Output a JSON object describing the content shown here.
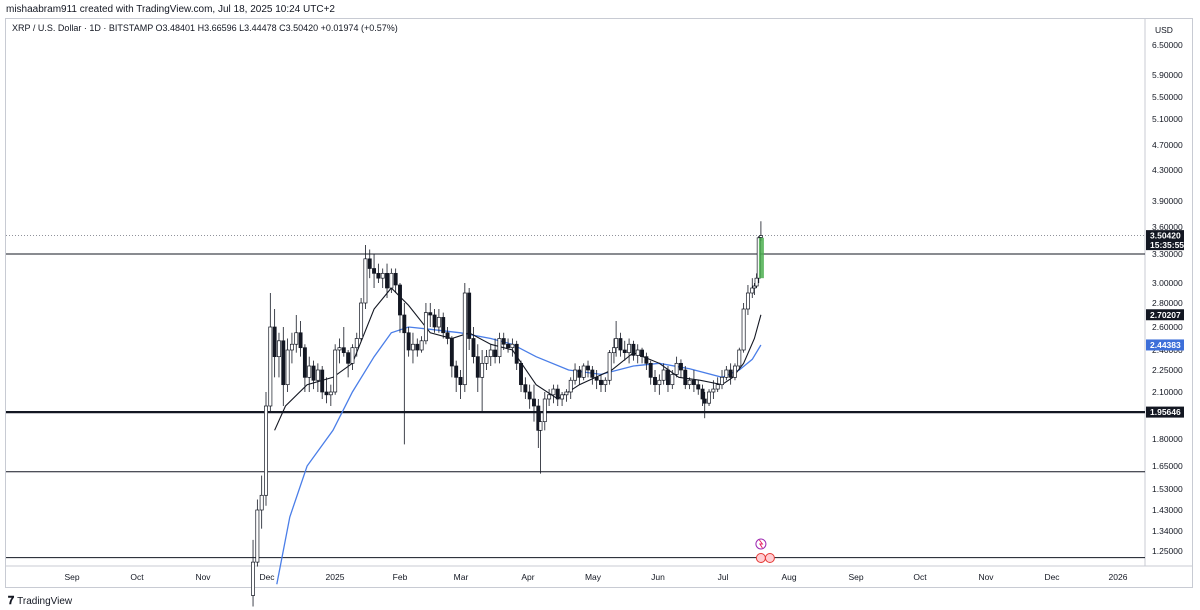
{
  "header": {
    "credit": "mishaabram911 created with TradingView.com, Jul 18, 2025 10:24 UTC+2",
    "symbol_line": "XRP / U.S. Dollar · 1D · BITSTAMP  O3.48401 H3.66596 L3.44478 C3.50420 +0.01974 (+0.57%)"
  },
  "footer": {
    "brand": "TradingView",
    "logo": "TV-logo-icon"
  },
  "chart_data": {
    "type": "candlestick",
    "currency_label": "USD",
    "y_ticks": [
      "6.50000",
      "5.90000",
      "5.50000",
      "5.10000",
      "4.70000",
      "4.30000",
      "3.90000",
      "3.60000",
      "3.30000",
      "3.00000",
      "2.80000",
      "2.60000",
      "2.40000",
      "2.25000",
      "2.10000",
      "1.95000",
      "1.80000",
      "1.65000",
      "1.53000",
      "1.43000",
      "1.34000",
      "1.25000"
    ],
    "x_ticks": [
      "Sep",
      "Oct",
      "Nov",
      "Dec",
      "2025",
      "Feb",
      "Mar",
      "Apr",
      "May",
      "Jun",
      "Jul",
      "Aug",
      "Sep",
      "Oct",
      "Nov",
      "Dec",
      "2026"
    ],
    "price_tags": [
      {
        "label": "3.50420",
        "sub": "15:35:55",
        "kind": "last"
      },
      {
        "label": "2.70207",
        "kind": "ma_fast"
      },
      {
        "label": "2.44383",
        "kind": "ma_slow"
      },
      {
        "label": "1.95646",
        "kind": "level"
      }
    ],
    "horizontal_levels": [
      3.3,
      1.95646,
      1.62,
      1.22
    ],
    "last_price": 3.5042,
    "colors": {
      "up": "#26a69a",
      "down": "#131722",
      "ma_fast": "#131722",
      "ma_slow": "#4a7ee8",
      "last_tag": "#131722",
      "ma_slow_tag": "#3d6fd9",
      "highlight": "#4caf50"
    },
    "series": [
      {
        "date": "2024-11-25",
        "o": 1.05,
        "h": 1.3,
        "l": 1.0,
        "c": 1.2
      },
      {
        "date": "2024-11-27",
        "o": 1.2,
        "h": 1.48,
        "l": 1.18,
        "c": 1.43
      },
      {
        "date": "2024-11-29",
        "o": 1.43,
        "h": 1.6,
        "l": 1.35,
        "c": 1.5
      },
      {
        "date": "2024-12-01",
        "o": 1.5,
        "h": 2.1,
        "l": 1.45,
        "c": 2.0
      },
      {
        "date": "2024-12-03",
        "o": 2.0,
        "h": 2.9,
        "l": 1.95,
        "c": 2.6
      },
      {
        "date": "2024-12-05",
        "o": 2.6,
        "h": 2.75,
        "l": 2.2,
        "c": 2.35
      },
      {
        "date": "2024-12-07",
        "o": 2.35,
        "h": 2.55,
        "l": 2.2,
        "c": 2.48
      },
      {
        "date": "2024-12-09",
        "o": 2.48,
        "h": 2.6,
        "l": 2.0,
        "c": 2.15
      },
      {
        "date": "2024-12-11",
        "o": 2.15,
        "h": 2.5,
        "l": 2.1,
        "c": 2.4
      },
      {
        "date": "2024-12-13",
        "o": 2.4,
        "h": 2.55,
        "l": 2.3,
        "c": 2.45
      },
      {
        "date": "2024-12-15",
        "o": 2.45,
        "h": 2.7,
        "l": 2.38,
        "c": 2.55
      },
      {
        "date": "2024-12-17",
        "o": 2.55,
        "h": 2.65,
        "l": 2.35,
        "c": 2.42
      },
      {
        "date": "2024-12-19",
        "o": 2.42,
        "h": 2.45,
        "l": 2.1,
        "c": 2.2
      },
      {
        "date": "2024-12-21",
        "o": 2.2,
        "h": 2.35,
        "l": 2.1,
        "c": 2.28
      },
      {
        "date": "2024-12-23",
        "o": 2.28,
        "h": 2.32,
        "l": 2.12,
        "c": 2.18
      },
      {
        "date": "2024-12-25",
        "o": 2.18,
        "h": 2.3,
        "l": 2.1,
        "c": 2.25
      },
      {
        "date": "2024-12-27",
        "o": 2.25,
        "h": 2.28,
        "l": 2.05,
        "c": 2.1
      },
      {
        "date": "2024-12-29",
        "o": 2.1,
        "h": 2.2,
        "l": 2.02,
        "c": 2.08
      },
      {
        "date": "2024-12-31",
        "o": 2.08,
        "h": 2.15,
        "l": 2.0,
        "c": 2.1
      },
      {
        "date": "2025-01-02",
        "o": 2.1,
        "h": 2.45,
        "l": 2.08,
        "c": 2.4
      },
      {
        "date": "2025-01-04",
        "o": 2.4,
        "h": 2.5,
        "l": 2.3,
        "c": 2.42
      },
      {
        "date": "2025-01-06",
        "o": 2.42,
        "h": 2.6,
        "l": 2.35,
        "c": 2.38
      },
      {
        "date": "2025-01-08",
        "o": 2.38,
        "h": 2.4,
        "l": 2.2,
        "c": 2.3
      },
      {
        "date": "2025-01-10",
        "o": 2.3,
        "h": 2.45,
        "l": 2.25,
        "c": 2.42
      },
      {
        "date": "2025-01-12",
        "o": 2.42,
        "h": 2.55,
        "l": 2.35,
        "c": 2.5
      },
      {
        "date": "2025-01-14",
        "o": 2.5,
        "h": 2.85,
        "l": 2.48,
        "c": 2.8
      },
      {
        "date": "2025-01-16",
        "o": 2.8,
        "h": 3.4,
        "l": 2.75,
        "c": 3.25
      },
      {
        "date": "2025-01-18",
        "o": 3.25,
        "h": 3.35,
        "l": 3.05,
        "c": 3.15
      },
      {
        "date": "2025-01-20",
        "o": 3.15,
        "h": 3.3,
        "l": 2.95,
        "c": 3.1
      },
      {
        "date": "2025-01-22",
        "o": 3.1,
        "h": 3.2,
        "l": 3.0,
        "c": 3.05
      },
      {
        "date": "2025-01-24",
        "o": 3.05,
        "h": 3.15,
        "l": 2.95,
        "c": 3.1
      },
      {
        "date": "2025-01-26",
        "o": 3.1,
        "h": 3.2,
        "l": 2.85,
        "c": 2.95
      },
      {
        "date": "2025-01-28",
        "o": 2.95,
        "h": 3.15,
        "l": 2.9,
        "c": 3.1
      },
      {
        "date": "2025-01-30",
        "o": 3.1,
        "h": 3.15,
        "l": 2.9,
        "c": 2.98
      },
      {
        "date": "2025-02-01",
        "o": 2.98,
        "h": 3.0,
        "l": 2.55,
        "c": 2.7
      },
      {
        "date": "2025-02-03",
        "o": 2.7,
        "h": 2.8,
        "l": 1.77,
        "c": 2.55
      },
      {
        "date": "2025-02-05",
        "o": 2.55,
        "h": 2.6,
        "l": 2.35,
        "c": 2.4
      },
      {
        "date": "2025-02-07",
        "o": 2.4,
        "h": 2.55,
        "l": 2.3,
        "c": 2.45
      },
      {
        "date": "2025-02-09",
        "o": 2.45,
        "h": 2.5,
        "l": 2.35,
        "c": 2.4
      },
      {
        "date": "2025-02-11",
        "o": 2.4,
        "h": 2.52,
        "l": 2.38,
        "c": 2.48
      },
      {
        "date": "2025-02-13",
        "o": 2.48,
        "h": 2.8,
        "l": 2.45,
        "c": 2.72
      },
      {
        "date": "2025-02-15",
        "o": 2.72,
        "h": 2.8,
        "l": 2.6,
        "c": 2.7
      },
      {
        "date": "2025-02-17",
        "o": 2.7,
        "h": 2.75,
        "l": 2.55,
        "c": 2.6
      },
      {
        "date": "2025-02-19",
        "o": 2.6,
        "h": 2.75,
        "l": 2.55,
        "c": 2.68
      },
      {
        "date": "2025-02-21",
        "o": 2.68,
        "h": 2.72,
        "l": 2.5,
        "c": 2.55
      },
      {
        "date": "2025-02-23",
        "o": 2.55,
        "h": 2.6,
        "l": 2.45,
        "c": 2.5
      },
      {
        "date": "2025-02-25",
        "o": 2.5,
        "h": 2.52,
        "l": 2.2,
        "c": 2.28
      },
      {
        "date": "2025-02-27",
        "o": 2.28,
        "h": 2.32,
        "l": 2.1,
        "c": 2.2
      },
      {
        "date": "2025-03-01",
        "o": 2.2,
        "h": 2.25,
        "l": 2.05,
        "c": 2.15
      },
      {
        "date": "2025-03-03",
        "o": 2.15,
        "h": 3.0,
        "l": 2.1,
        "c": 2.9
      },
      {
        "date": "2025-03-05",
        "o": 2.9,
        "h": 2.95,
        "l": 2.4,
        "c": 2.5
      },
      {
        "date": "2025-03-07",
        "o": 2.5,
        "h": 2.6,
        "l": 2.3,
        "c": 2.35
      },
      {
        "date": "2025-03-09",
        "o": 2.35,
        "h": 2.45,
        "l": 2.1,
        "c": 2.2
      },
      {
        "date": "2025-03-11",
        "o": 2.2,
        "h": 2.4,
        "l": 1.95,
        "c": 2.3
      },
      {
        "date": "2025-03-13",
        "o": 2.3,
        "h": 2.4,
        "l": 2.25,
        "c": 2.35
      },
      {
        "date": "2025-03-15",
        "o": 2.35,
        "h": 2.45,
        "l": 2.28,
        "c": 2.4
      },
      {
        "date": "2025-03-17",
        "o": 2.4,
        "h": 2.5,
        "l": 2.3,
        "c": 2.35
      },
      {
        "date": "2025-03-19",
        "o": 2.35,
        "h": 2.55,
        "l": 2.3,
        "c": 2.5
      },
      {
        "date": "2025-03-21",
        "o": 2.5,
        "h": 2.55,
        "l": 2.4,
        "c": 2.45
      },
      {
        "date": "2025-03-23",
        "o": 2.45,
        "h": 2.5,
        "l": 2.38,
        "c": 2.42
      },
      {
        "date": "2025-03-25",
        "o": 2.42,
        "h": 2.5,
        "l": 2.35,
        "c": 2.45
      },
      {
        "date": "2025-03-27",
        "o": 2.45,
        "h": 2.48,
        "l": 2.25,
        "c": 2.3
      },
      {
        "date": "2025-03-29",
        "o": 2.3,
        "h": 2.32,
        "l": 2.1,
        "c": 2.15
      },
      {
        "date": "2025-03-31",
        "o": 2.15,
        "h": 2.2,
        "l": 2.05,
        "c": 2.1
      },
      {
        "date": "2025-04-02",
        "o": 2.1,
        "h": 2.15,
        "l": 1.98,
        "c": 2.05
      },
      {
        "date": "2025-04-04",
        "o": 2.05,
        "h": 2.15,
        "l": 1.9,
        "c": 2.0
      },
      {
        "date": "2025-04-06",
        "o": 2.0,
        "h": 2.05,
        "l": 1.75,
        "c": 1.85
      },
      {
        "date": "2025-04-07",
        "o": 1.85,
        "h": 1.95,
        "l": 1.61,
        "c": 1.9
      },
      {
        "date": "2025-04-09",
        "o": 1.9,
        "h": 2.1,
        "l": 1.85,
        "c": 2.05
      },
      {
        "date": "2025-04-11",
        "o": 2.05,
        "h": 2.12,
        "l": 2.0,
        "c": 2.08
      },
      {
        "date": "2025-04-13",
        "o": 2.08,
        "h": 2.15,
        "l": 2.02,
        "c": 2.12
      },
      {
        "date": "2025-04-15",
        "o": 2.12,
        "h": 2.15,
        "l": 2.0,
        "c": 2.05
      },
      {
        "date": "2025-04-17",
        "o": 2.05,
        "h": 2.1,
        "l": 2.0,
        "c": 2.08
      },
      {
        "date": "2025-04-19",
        "o": 2.08,
        "h": 2.12,
        "l": 2.03,
        "c": 2.1
      },
      {
        "date": "2025-04-21",
        "o": 2.1,
        "h": 2.2,
        "l": 2.05,
        "c": 2.18
      },
      {
        "date": "2025-04-23",
        "o": 2.18,
        "h": 2.3,
        "l": 2.15,
        "c": 2.25
      },
      {
        "date": "2025-04-25",
        "o": 2.25,
        "h": 2.28,
        "l": 2.15,
        "c": 2.2
      },
      {
        "date": "2025-04-27",
        "o": 2.2,
        "h": 2.3,
        "l": 2.18,
        "c": 2.28
      },
      {
        "date": "2025-04-29",
        "o": 2.28,
        "h": 2.32,
        "l": 2.2,
        "c": 2.25
      },
      {
        "date": "2025-05-01",
        "o": 2.25,
        "h": 2.28,
        "l": 2.15,
        "c": 2.2
      },
      {
        "date": "2025-05-03",
        "o": 2.2,
        "h": 2.25,
        "l": 2.12,
        "c": 2.18
      },
      {
        "date": "2025-05-05",
        "o": 2.18,
        "h": 2.22,
        "l": 2.1,
        "c": 2.15
      },
      {
        "date": "2025-05-07",
        "o": 2.15,
        "h": 2.2,
        "l": 2.1,
        "c": 2.18
      },
      {
        "date": "2025-05-09",
        "o": 2.18,
        "h": 2.4,
        "l": 2.15,
        "c": 2.38
      },
      {
        "date": "2025-05-11",
        "o": 2.38,
        "h": 2.5,
        "l": 2.3,
        "c": 2.42
      },
      {
        "date": "2025-05-12",
        "o": 2.42,
        "h": 2.65,
        "l": 2.35,
        "c": 2.5
      },
      {
        "date": "2025-05-14",
        "o": 2.5,
        "h": 2.55,
        "l": 2.35,
        "c": 2.4
      },
      {
        "date": "2025-05-16",
        "o": 2.4,
        "h": 2.48,
        "l": 2.32,
        "c": 2.38
      },
      {
        "date": "2025-05-18",
        "o": 2.38,
        "h": 2.5,
        "l": 2.3,
        "c": 2.45
      },
      {
        "date": "2025-05-20",
        "o": 2.45,
        "h": 2.48,
        "l": 2.32,
        "c": 2.36
      },
      {
        "date": "2025-05-22",
        "o": 2.36,
        "h": 2.45,
        "l": 2.3,
        "c": 2.4
      },
      {
        "date": "2025-05-24",
        "o": 2.4,
        "h": 2.42,
        "l": 2.3,
        "c": 2.35
      },
      {
        "date": "2025-05-26",
        "o": 2.35,
        "h": 2.38,
        "l": 2.25,
        "c": 2.3
      },
      {
        "date": "2025-05-28",
        "o": 2.3,
        "h": 2.32,
        "l": 2.15,
        "c": 2.2
      },
      {
        "date": "2025-05-30",
        "o": 2.2,
        "h": 2.25,
        "l": 2.1,
        "c": 2.15
      },
      {
        "date": "2025-06-01",
        "o": 2.15,
        "h": 2.22,
        "l": 2.08,
        "c": 2.18
      },
      {
        "date": "2025-06-03",
        "o": 2.18,
        "h": 2.3,
        "l": 2.15,
        "c": 2.25
      },
      {
        "date": "2025-06-05",
        "o": 2.25,
        "h": 2.28,
        "l": 2.1,
        "c": 2.15
      },
      {
        "date": "2025-06-07",
        "o": 2.15,
        "h": 2.25,
        "l": 2.12,
        "c": 2.22
      },
      {
        "date": "2025-06-09",
        "o": 2.22,
        "h": 2.35,
        "l": 2.2,
        "c": 2.3
      },
      {
        "date": "2025-06-11",
        "o": 2.3,
        "h": 2.33,
        "l": 2.2,
        "c": 2.25
      },
      {
        "date": "2025-06-13",
        "o": 2.25,
        "h": 2.28,
        "l": 2.12,
        "c": 2.15
      },
      {
        "date": "2025-06-15",
        "o": 2.15,
        "h": 2.2,
        "l": 2.12,
        "c": 2.18
      },
      {
        "date": "2025-06-17",
        "o": 2.18,
        "h": 2.25,
        "l": 2.1,
        "c": 2.15
      },
      {
        "date": "2025-06-19",
        "o": 2.15,
        "h": 2.18,
        "l": 2.08,
        "c": 2.12
      },
      {
        "date": "2025-06-21",
        "o": 2.12,
        "h": 2.15,
        "l": 2.0,
        "c": 2.05
      },
      {
        "date": "2025-06-22",
        "o": 2.05,
        "h": 2.1,
        "l": 1.92,
        "c": 2.02
      },
      {
        "date": "2025-06-24",
        "o": 2.02,
        "h": 2.12,
        "l": 2.0,
        "c": 2.1
      },
      {
        "date": "2025-06-26",
        "o": 2.1,
        "h": 2.18,
        "l": 2.05,
        "c": 2.12
      },
      {
        "date": "2025-06-28",
        "o": 2.12,
        "h": 2.2,
        "l": 2.1,
        "c": 2.15
      },
      {
        "date": "2025-06-30",
        "o": 2.15,
        "h": 2.25,
        "l": 2.12,
        "c": 2.2
      },
      {
        "date": "2025-07-02",
        "o": 2.2,
        "h": 2.28,
        "l": 2.18,
        "c": 2.25
      },
      {
        "date": "2025-07-04",
        "o": 2.25,
        "h": 2.3,
        "l": 2.15,
        "c": 2.2
      },
      {
        "date": "2025-07-06",
        "o": 2.2,
        "h": 2.3,
        "l": 2.18,
        "c": 2.28
      },
      {
        "date": "2025-07-08",
        "o": 2.28,
        "h": 2.42,
        "l": 2.25,
        "c": 2.4
      },
      {
        "date": "2025-07-10",
        "o": 2.4,
        "h": 2.8,
        "l": 2.38,
        "c": 2.75
      },
      {
        "date": "2025-07-12",
        "o": 2.75,
        "h": 2.98,
        "l": 2.7,
        "c": 2.9
      },
      {
        "date": "2025-07-14",
        "o": 2.9,
        "h": 3.05,
        "l": 2.85,
        "c": 2.95
      },
      {
        "date": "2025-07-15",
        "o": 2.95,
        "h": 3.0,
        "l": 2.88,
        "c": 2.97
      },
      {
        "date": "2025-07-16",
        "o": 2.97,
        "h": 3.1,
        "l": 2.95,
        "c": 3.05
      },
      {
        "date": "2025-07-17",
        "o": 3.05,
        "h": 3.5,
        "l": 3.0,
        "c": 3.48
      },
      {
        "date": "2025-07-18",
        "o": 3.48401,
        "h": 3.66596,
        "l": 3.44478,
        "c": 3.5042
      }
    ],
    "ma_fast": [
      [
        "2024-12-05",
        1.85
      ],
      [
        "2024-12-10",
        2.0
      ],
      [
        "2024-12-20",
        2.15
      ],
      [
        "2025-01-01",
        2.2
      ],
      [
        "2025-01-10",
        2.3
      ],
      [
        "2025-01-20",
        2.75
      ],
      [
        "2025-01-28",
        2.95
      ],
      [
        "2025-02-05",
        2.78
      ],
      [
        "2025-02-15",
        2.55
      ],
      [
        "2025-02-25",
        2.5
      ],
      [
        "2025-03-05",
        2.55
      ],
      [
        "2025-03-15",
        2.45
      ],
      [
        "2025-03-25",
        2.4
      ],
      [
        "2025-04-05",
        2.15
      ],
      [
        "2025-04-15",
        2.05
      ],
      [
        "2025-04-25",
        2.15
      ],
      [
        "2025-05-10",
        2.25
      ],
      [
        "2025-05-20",
        2.38
      ],
      [
        "2025-06-01",
        2.3
      ],
      [
        "2025-06-10",
        2.2
      ],
      [
        "2025-06-20",
        2.18
      ],
      [
        "2025-06-30",
        2.15
      ],
      [
        "2025-07-05",
        2.2
      ],
      [
        "2025-07-10",
        2.3
      ],
      [
        "2025-07-15",
        2.5
      ],
      [
        "2025-07-18",
        2.70207
      ]
    ],
    "ma_slow": [
      [
        "2024-12-06",
        1.1
      ],
      [
        "2024-12-12",
        1.4
      ],
      [
        "2024-12-20",
        1.65
      ],
      [
        "2025-01-01",
        1.85
      ],
      [
        "2025-01-10",
        2.1
      ],
      [
        "2025-01-20",
        2.35
      ],
      [
        "2025-01-28",
        2.55
      ],
      [
        "2025-02-05",
        2.6
      ],
      [
        "2025-02-15",
        2.58
      ],
      [
        "2025-03-01",
        2.55
      ],
      [
        "2025-03-15",
        2.5
      ],
      [
        "2025-03-25",
        2.45
      ],
      [
        "2025-04-05",
        2.35
      ],
      [
        "2025-04-20",
        2.25
      ],
      [
        "2025-05-05",
        2.22
      ],
      [
        "2025-05-20",
        2.28
      ],
      [
        "2025-06-01",
        2.3
      ],
      [
        "2025-06-15",
        2.26
      ],
      [
        "2025-06-30",
        2.2
      ],
      [
        "2025-07-08",
        2.25
      ],
      [
        "2025-07-14",
        2.33
      ],
      [
        "2025-07-18",
        2.44383
      ]
    ]
  }
}
